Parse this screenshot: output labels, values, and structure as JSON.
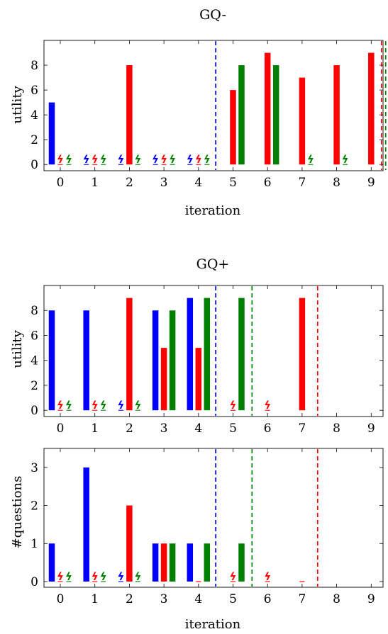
{
  "colors": {
    "blue": "#0000ff",
    "red": "#ff0000",
    "green": "#008000"
  },
  "chart_data": [
    {
      "type": "bar",
      "title": "GQ-",
      "xlabel": "iteration",
      "ylabel": "utility",
      "x": [
        0,
        1,
        2,
        3,
        4,
        5,
        6,
        7,
        8,
        9
      ],
      "ylim": [
        -0.5,
        10
      ],
      "yticks": [
        0,
        2,
        4,
        6,
        8
      ],
      "series_colors": [
        "blue",
        "red",
        "green"
      ],
      "series": [
        {
          "values": [
            5,
            null,
            null,
            null,
            null,
            null,
            null,
            null,
            null,
            null
          ]
        },
        {
          "values": [
            null,
            null,
            8,
            null,
            null,
            6,
            9,
            7,
            8,
            9
          ]
        },
        {
          "values": [
            null,
            null,
            null,
            null,
            null,
            8,
            8,
            null,
            null,
            null
          ]
        }
      ],
      "failures": [
        [
          1,
          2,
          3,
          4
        ],
        [
          0,
          1,
          3,
          4
        ],
        [
          0,
          1,
          2,
          3,
          4,
          7,
          8
        ]
      ],
      "vlines": [
        {
          "color": "blue",
          "x": 4.5
        },
        {
          "color": "red",
          "x": 9.3
        },
        {
          "color": "green",
          "x": 9.42
        }
      ],
      "grid": false
    },
    {
      "type": "bar",
      "title": "GQ+",
      "xlabel": "",
      "ylabel": "utility",
      "x": [
        0,
        1,
        2,
        3,
        4,
        5,
        6,
        7,
        8,
        9
      ],
      "ylim": [
        -0.5,
        10
      ],
      "yticks": [
        0,
        2,
        4,
        6,
        8
      ],
      "series_colors": [
        "blue",
        "red",
        "green"
      ],
      "series": [
        {
          "values": [
            8,
            8,
            null,
            8,
            9,
            null,
            null,
            null,
            null,
            null
          ]
        },
        {
          "values": [
            null,
            null,
            9,
            5,
            5,
            null,
            null,
            9,
            null,
            null
          ]
        },
        {
          "values": [
            null,
            null,
            null,
            8,
            9,
            9,
            null,
            null,
            null,
            null
          ]
        }
      ],
      "failures": [
        [
          2
        ],
        [
          0,
          1,
          5,
          6
        ],
        [
          0,
          1,
          2
        ]
      ],
      "vlines": [
        {
          "color": "blue",
          "x": 4.5
        },
        {
          "color": "green",
          "x": 5.55
        },
        {
          "color": "red",
          "x": 7.45
        }
      ],
      "grid": false
    },
    {
      "type": "bar",
      "title": "",
      "xlabel": "iteration",
      "ylabel": "#questions",
      "x": [
        0,
        1,
        2,
        3,
        4,
        5,
        6,
        7,
        8,
        9
      ],
      "ylim": [
        -0.15,
        3.5
      ],
      "yticks": [
        0,
        1,
        2,
        3
      ],
      "series_colors": [
        "blue",
        "red",
        "green"
      ],
      "series": [
        {
          "values": [
            1,
            3,
            null,
            1,
            1,
            null,
            null,
            null,
            null,
            null
          ]
        },
        {
          "values": [
            null,
            null,
            2,
            1,
            0,
            null,
            null,
            0,
            null,
            null
          ]
        },
        {
          "values": [
            null,
            null,
            null,
            1,
            1,
            1,
            null,
            null,
            null,
            null
          ]
        }
      ],
      "failures": [
        [
          2
        ],
        [
          0,
          1,
          5,
          6
        ],
        [
          0,
          1,
          2
        ]
      ],
      "vlines": [
        {
          "color": "blue",
          "x": 4.5
        },
        {
          "color": "green",
          "x": 5.55
        },
        {
          "color": "red",
          "x": 7.45
        }
      ],
      "grid": false
    }
  ]
}
